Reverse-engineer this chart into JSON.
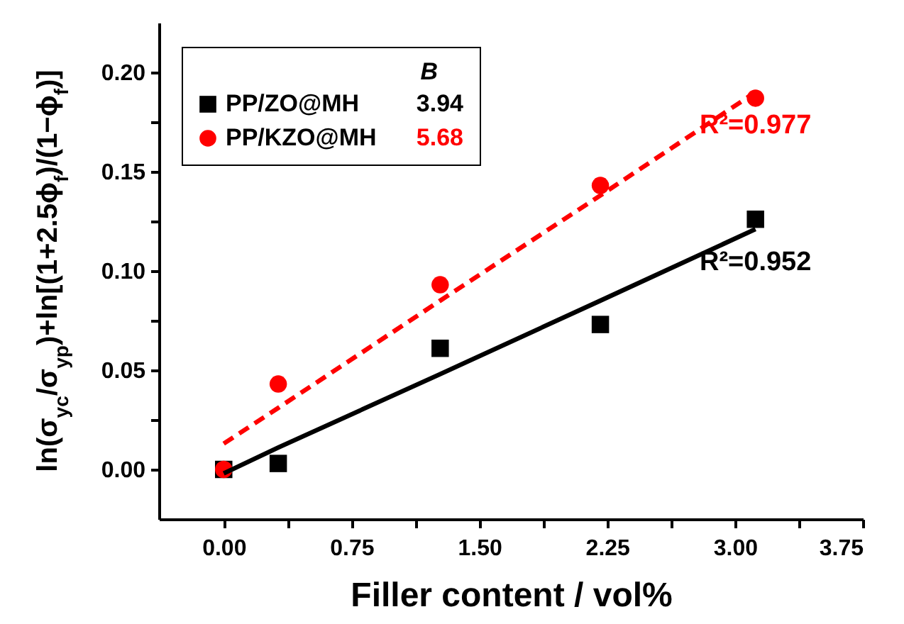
{
  "chart_data": {
    "type": "scatter",
    "xlabel": "Filler content / vol%",
    "ylabel": "ln(σ$_{yc}$/σ$_{yp}$)+ln[(1+2.5ϕ$_{f}$)/(1−ϕ$_{f}$)]",
    "legend_title": "B",
    "legend": "top left",
    "xlim": [
      -0.38,
      3.75
    ],
    "ylim": [
      -0.025,
      0.225
    ],
    "xticks": [
      {
        "value": 0,
        "label": "0.00"
      },
      {
        "value": 0.375,
        "label": null
      },
      {
        "value": 0.75,
        "label": "0.75"
      },
      {
        "value": 1.125,
        "label": null
      },
      {
        "value": 1.5,
        "label": "1.50"
      },
      {
        "value": 1.875,
        "label": null
      },
      {
        "value": 2.25,
        "label": "2.25"
      },
      {
        "value": 2.625,
        "label": null
      },
      {
        "value": 3,
        "label": "3.00"
      },
      {
        "value": 3.375,
        "label": null
      },
      {
        "value": 3.75,
        "label": "3.75"
      }
    ],
    "yticks": [
      {
        "value": 0,
        "label": "0.00"
      },
      {
        "value": 0.025,
        "label": null
      },
      {
        "value": 0.05,
        "label": "0.05"
      },
      {
        "value": 0.075,
        "label": null
      },
      {
        "value": 0.1,
        "label": "0.10"
      },
      {
        "value": 0.125,
        "label": null
      },
      {
        "value": 0.15,
        "label": "0.15"
      },
      {
        "value": 0.175,
        "label": null
      },
      {
        "value": 0.2,
        "label": "0.20"
      }
    ],
    "x": [
      0,
      0.32,
      1.27,
      2.21,
      3.12
    ],
    "series": [
      {
        "name": "PP/ZO@MH",
        "color": "#000000",
        "marker": "square",
        "values": [
          0,
          0.003,
          0.061,
          0.073,
          0.126
        ]
      },
      {
        "name": "PP/KZO@MH",
        "color": "#ff0000",
        "marker": "circle",
        "values": [
          0,
          0.043,
          0.093,
          0.143,
          0.187
        ]
      },
      {
        "type": "line",
        "color": "#000000",
        "line_style": "solid",
        "values": [
          -0.002,
          0.011,
          0.048,
          0.085,
          0.121
        ]
      },
      {
        "type": "line",
        "color": "#ff0000",
        "line_style": "dashed",
        "values": [
          0.013,
          0.031,
          0.085,
          0.138,
          0.19
        ]
      }
    ],
    "annotations": [
      "3.94",
      "5.68",
      "R²=0.952",
      "R²=0.977"
    ]
  }
}
